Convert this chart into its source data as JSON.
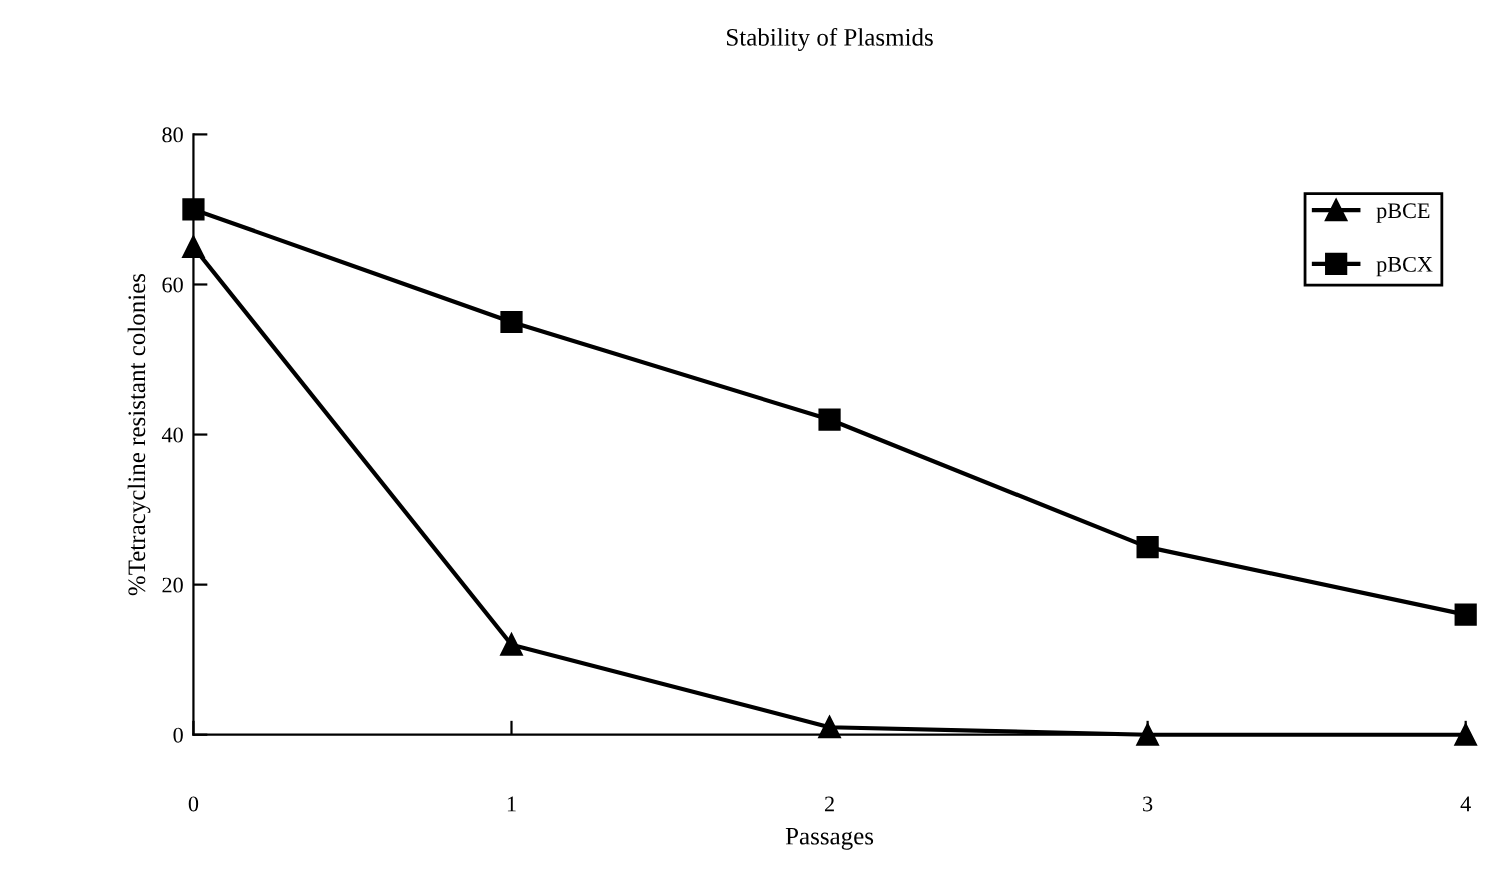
{
  "chart_data": {
    "type": "line",
    "title": "Stability of Plasmids",
    "xlabel": "Passages",
    "ylabel": "%Tetracycline resistant colonies",
    "x": [
      0,
      1,
      2,
      3,
      4
    ],
    "series": [
      {
        "name": "pBCE",
        "color": "#000000",
        "marker": "triangle",
        "values": [
          65,
          12,
          1,
          0,
          0
        ]
      },
      {
        "name": "pBCX",
        "color": "#000000",
        "marker": "square",
        "values": [
          70,
          55,
          42,
          25,
          16
        ]
      }
    ],
    "xlim": [
      0,
      4
    ],
    "xticks": [
      0,
      1,
      2,
      3,
      4
    ],
    "ylim": [
      0,
      80
    ],
    "yticks": [
      0,
      20,
      40,
      60,
      80
    ],
    "grid": false,
    "legend": "top right",
    "line_style": "solid"
  }
}
